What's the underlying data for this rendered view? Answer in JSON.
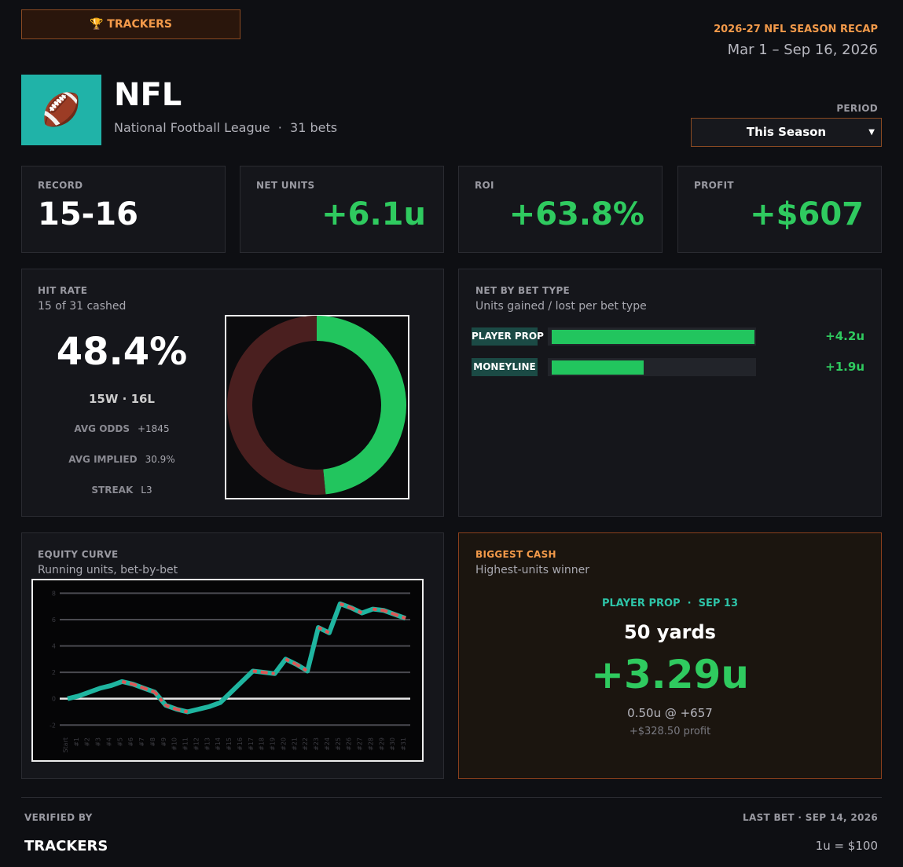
{
  "header": {
    "badge": "TRACKERS",
    "recap": "2026-27 NFL SEASON RECAP",
    "dates": "Mar 1 – Sep 16, 2026"
  },
  "league": {
    "name": "NFL",
    "full_name": "National Football League",
    "bets": "31 bets",
    "period_label": "PERIOD",
    "period": "This Season"
  },
  "stats": [
    {
      "label": "RECORD",
      "value": "15-16"
    },
    {
      "label": "NET UNITS",
      "value": "+6.1u"
    },
    {
      "label": "ROI",
      "value": "+63.8%"
    },
    {
      "label": "PROFIT",
      "value": "+$607"
    }
  ],
  "hit_rate": {
    "title": "HIT RATE",
    "subtitle": "15 of 31 cashed",
    "rate": "48.4%",
    "wins": "15W",
    "losses": "16L",
    "details": [
      {
        "label": "AVG ODDS",
        "value": "+1845"
      },
      {
        "label": "AVG IMPLIED",
        "value": "30.9%"
      },
      {
        "label": "STREAK",
        "value": "L3"
      }
    ],
    "chart_data": {
      "type": "pie",
      "values": [
        15,
        16
      ],
      "colors": [
        "#22c55e",
        "#4a1f1f"
      ]
    }
  },
  "bet_types": {
    "title": "NET BY BET TYPE",
    "subtitle": "Units gained / lost per bet type",
    "chart_data": {
      "type": "bar",
      "orientation": "horizontal",
      "categories": [
        "PLAYER PROP",
        "MONEYLINE"
      ],
      "values": [
        4.2,
        1.9
      ],
      "value_labels": [
        "+4.2u",
        "+1.9u"
      ],
      "color": "#22c55e"
    }
  },
  "equity": {
    "title": "EQUITY CURVE",
    "subtitle": "Running units, bet-by-bet",
    "chart_data": {
      "type": "line",
      "categories": [
        "Start",
        "#1",
        "#2",
        "#3",
        "#4",
        "#5",
        "#6",
        "#7",
        "#8",
        "#9",
        "#10",
        "#11",
        "#12",
        "#13",
        "#14",
        "#15",
        "#16",
        "#17",
        "#18",
        "#19",
        "#20",
        "#21",
        "#22",
        "#23",
        "#24",
        "#25",
        "#26",
        "#27",
        "#28",
        "#29",
        "#30",
        "#31"
      ],
      "series": [
        {
          "color": "#1fb5a0",
          "values": [
            0,
            0.2,
            0.5,
            0.8,
            1.0,
            1.3,
            1.1,
            0.8,
            0.5,
            -0.5,
            -0.8,
            -1.0,
            -0.8,
            -0.6,
            -0.3,
            0.5,
            1.3,
            2.1,
            2.0,
            1.9,
            3.0,
            2.6,
            2.1,
            5.4,
            5.0,
            7.2,
            6.9,
            6.5,
            6.8,
            6.7,
            6.4,
            6.1
          ]
        }
      ],
      "loss_color": "#e05555",
      "ylim": [
        -2.7,
        8.8
      ],
      "yticks": [
        -2,
        0,
        2,
        4,
        6,
        8
      ],
      "grid": true
    }
  },
  "biggest": {
    "title": "BIGGEST CASH",
    "subtitle": "Highest-units winner",
    "type": "PLAYER PROP",
    "date": "SEP 13",
    "bet": "50 yards",
    "units": "+3.29u",
    "stake": "0.50u @ +657",
    "profit": "+$328.50 profit"
  },
  "footer": {
    "verified_label": "VERIFIED BY",
    "verified": "TRACKERS",
    "last_bet_label": "LAST BET",
    "last_bet": "SEP 14, 2026",
    "unit": "1u = $100"
  }
}
